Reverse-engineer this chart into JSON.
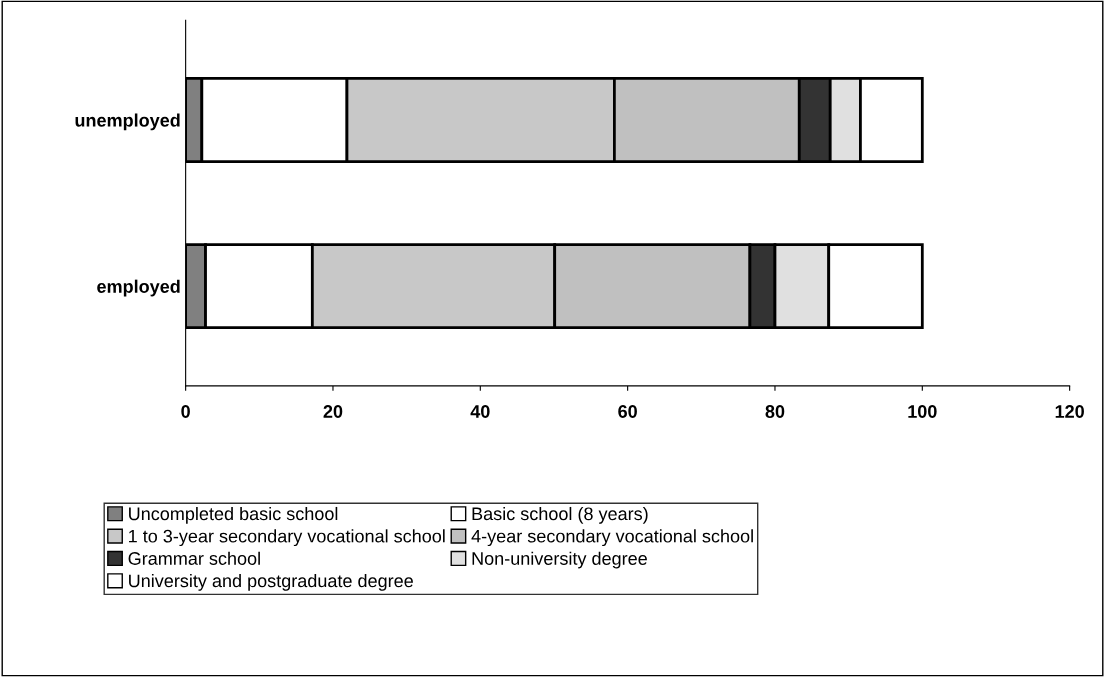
{
  "chart_data": {
    "type": "bar",
    "orientation": "horizontal",
    "stacked": true,
    "categories": [
      "unemployed",
      "employed"
    ],
    "series": [
      {
        "name": "Uncompleted basic school",
        "color": "#808080",
        "values": [
          2.2,
          2.7
        ]
      },
      {
        "name": "Basic school (8 years)",
        "color": "#ffffff",
        "values": [
          19.7,
          14.5
        ]
      },
      {
        "name": "1 to 3-year secondary vocational school",
        "color": "#c8c8c8",
        "values": [
          36.3,
          32.9
        ]
      },
      {
        "name": "4-year secondary vocational school",
        "color": "#c0c0c0",
        "values": [
          25.1,
          26.5
        ]
      },
      {
        "name": "Grammar school",
        "color": "#333333",
        "values": [
          4.2,
          3.4
        ]
      },
      {
        "name": "Non-university degree",
        "color": "#e0e0e0",
        "values": [
          4.1,
          7.3
        ]
      },
      {
        "name": "University and postgraduate degree",
        "color": "#ffffff",
        "values": [
          8.4,
          12.7
        ]
      }
    ],
    "xlim": [
      0,
      120
    ],
    "xticks": [
      0,
      20,
      40,
      60,
      80,
      100,
      120
    ],
    "grid": false,
    "legend": "bottom"
  }
}
